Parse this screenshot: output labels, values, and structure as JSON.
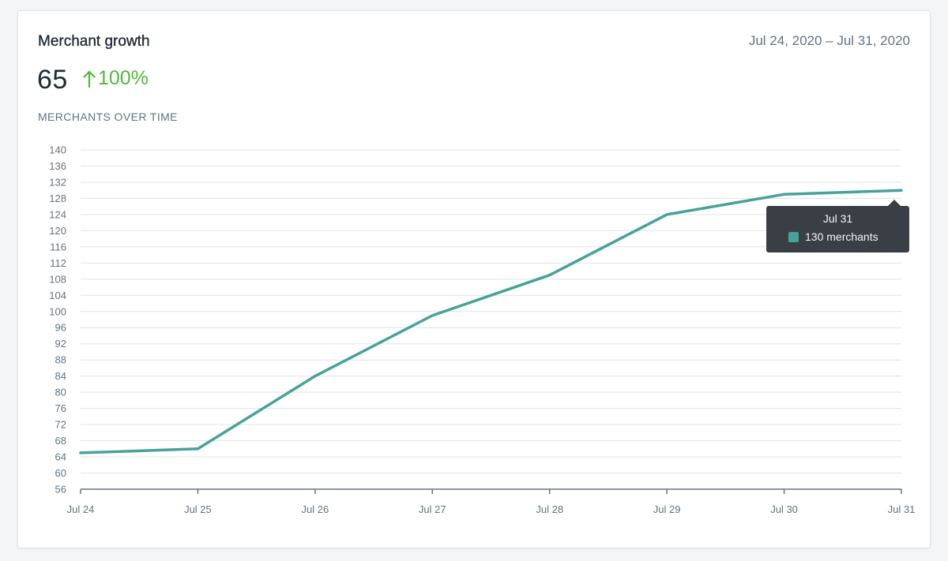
{
  "card": {
    "title": "Merchant growth",
    "date_range": "Jul 24, 2020 – Jul 31, 2020",
    "metric_value": "65",
    "metric_change": "100%",
    "metric_change_direction": "up",
    "chart_subtitle": "MERCHANTS OVER TIME"
  },
  "tooltip": {
    "date": "Jul 31",
    "label": "130 merchants"
  },
  "colors": {
    "line": "#47a29a",
    "positive": "#50b83c",
    "tooltip_bg": "#3a3f45"
  },
  "chart_data": {
    "type": "line",
    "title": "MERCHANTS OVER TIME",
    "xlabel": "",
    "ylabel": "",
    "categories": [
      "Jul 24",
      "Jul 25",
      "Jul 26",
      "Jul 27",
      "Jul 28",
      "Jul 29",
      "Jul 30",
      "Jul 31"
    ],
    "series": [
      {
        "values": [
          65,
          66,
          84,
          99,
          109,
          124,
          129,
          130
        ]
      }
    ],
    "ylim": [
      56,
      140
    ],
    "yticks": [
      56,
      60,
      64,
      68,
      72,
      76,
      80,
      84,
      88,
      92,
      96,
      100,
      104,
      108,
      112,
      116,
      120,
      124,
      128,
      132,
      136,
      140
    ],
    "grid": true,
    "legend": "none"
  }
}
